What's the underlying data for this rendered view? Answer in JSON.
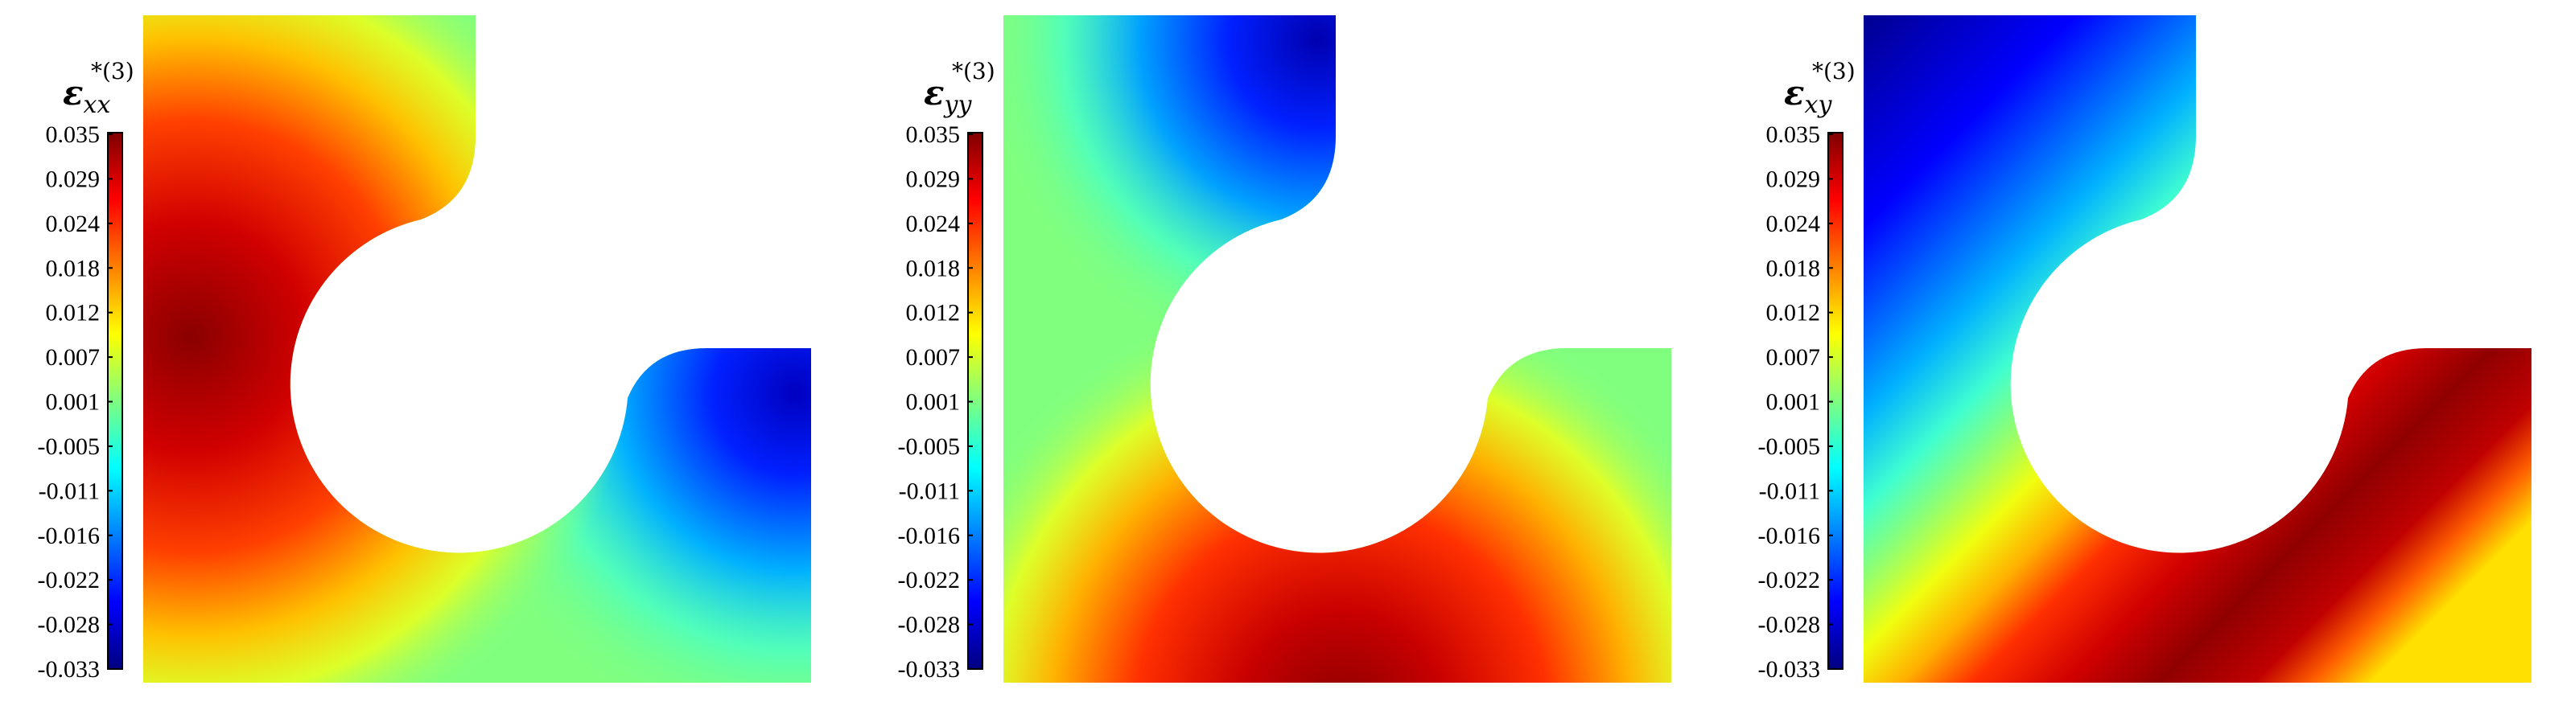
{
  "panels": [
    {
      "id": "xx",
      "label": {
        "symbol": "ε",
        "superscript": "*(3)",
        "subscript": "xx"
      },
      "colorbar_ticks": [
        "0.035",
        "0.029",
        "0.024",
        "0.018",
        "0.012",
        "0.007",
        "0.001",
        "-0.005",
        "-0.011",
        "-0.016",
        "-0.022",
        "-0.028",
        "-0.033"
      ]
    },
    {
      "id": "yy",
      "label": {
        "symbol": "ε",
        "superscript": "*(3)",
        "subscript": "yy"
      },
      "colorbar_ticks": [
        "0.035",
        "0.029",
        "0.024",
        "0.018",
        "0.012",
        "0.007",
        "0.001",
        "-0.005",
        "-0.011",
        "-0.016",
        "-0.022",
        "-0.028",
        "-0.033"
      ]
    },
    {
      "id": "xy",
      "label": {
        "symbol": "ε",
        "superscript": "*(3)",
        "subscript": "xy"
      },
      "colorbar_ticks": [
        "0.035",
        "0.029",
        "0.024",
        "0.018",
        "0.012",
        "0.007",
        "0.001",
        "-0.005",
        "-0.011",
        "-0.016",
        "-0.022",
        "-0.028",
        "-0.033"
      ]
    }
  ],
  "colormap": {
    "name": "jet",
    "stops": [
      "#00007f",
      "#0000ff",
      "#00ffff",
      "#7fff7f",
      "#ffff00",
      "#ff0000",
      "#7f0000"
    ]
  }
}
